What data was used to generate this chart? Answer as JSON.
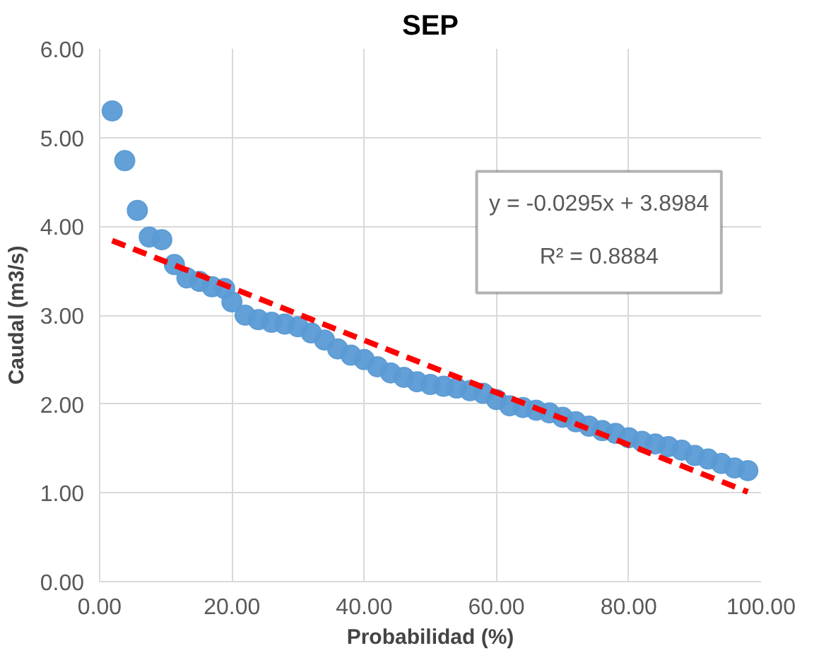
{
  "chart_data": {
    "type": "scatter",
    "title": "SEP",
    "xlabel": "Probabilidad (%)",
    "ylabel": "Caudal (m3/s)",
    "xlim": [
      0,
      100
    ],
    "ylim": [
      0,
      6
    ],
    "xticks": [
      {
        "value": 0,
        "label": "0.00"
      },
      {
        "value": 20,
        "label": "20.00"
      },
      {
        "value": 40,
        "label": "40.00"
      },
      {
        "value": 60,
        "label": "60.00"
      },
      {
        "value": 80,
        "label": "80.00"
      },
      {
        "value": 100,
        "label": "100.00"
      }
    ],
    "yticks": [
      {
        "value": 0,
        "label": "0.00"
      },
      {
        "value": 1,
        "label": "1.00"
      },
      {
        "value": 2,
        "label": "2.00"
      },
      {
        "value": 3,
        "label": "3.00"
      },
      {
        "value": 4,
        "label": "4.00"
      },
      {
        "value": 5,
        "label": "5.00"
      },
      {
        "value": 6,
        "label": "6.00"
      }
    ],
    "grid": true,
    "marker": "circle",
    "series": [
      {
        "color": "#5b9bd5",
        "x": [
          1.9,
          3.8,
          5.7,
          7.5,
          9.4,
          11.3,
          13.2,
          15.1,
          17.0,
          18.9,
          20,
          22,
          24,
          26,
          28,
          30,
          32,
          34,
          36,
          38,
          40,
          42,
          44,
          46,
          48,
          50,
          52,
          54,
          56,
          58,
          60,
          62,
          64,
          66,
          68,
          70,
          72,
          74,
          76,
          78,
          80,
          82,
          84,
          86,
          88,
          90,
          92,
          94,
          96,
          98
        ],
        "values": [
          5.3,
          4.74,
          4.18,
          3.88,
          3.85,
          3.57,
          3.42,
          3.38,
          3.32,
          3.3,
          3.15,
          3.0,
          2.95,
          2.92,
          2.9,
          2.87,
          2.8,
          2.72,
          2.62,
          2.55,
          2.5,
          2.42,
          2.35,
          2.3,
          2.25,
          2.22,
          2.2,
          2.18,
          2.15,
          2.12,
          2.05,
          1.98,
          1.96,
          1.93,
          1.9,
          1.85,
          1.8,
          1.75,
          1.7,
          1.67,
          1.62,
          1.58,
          1.55,
          1.52,
          1.48,
          1.42,
          1.38,
          1.33,
          1.28,
          1.25
        ]
      },
      {
        "type": "line",
        "marker": "none",
        "color": "#ff0000",
        "line_style": "dashed",
        "x": [
          1.9,
          98
        ],
        "values": [
          3.84,
          1.01
        ]
      }
    ],
    "annotations": [
      "y = -0.0295x + 3.8984",
      "R² = 0.8884"
    ]
  }
}
